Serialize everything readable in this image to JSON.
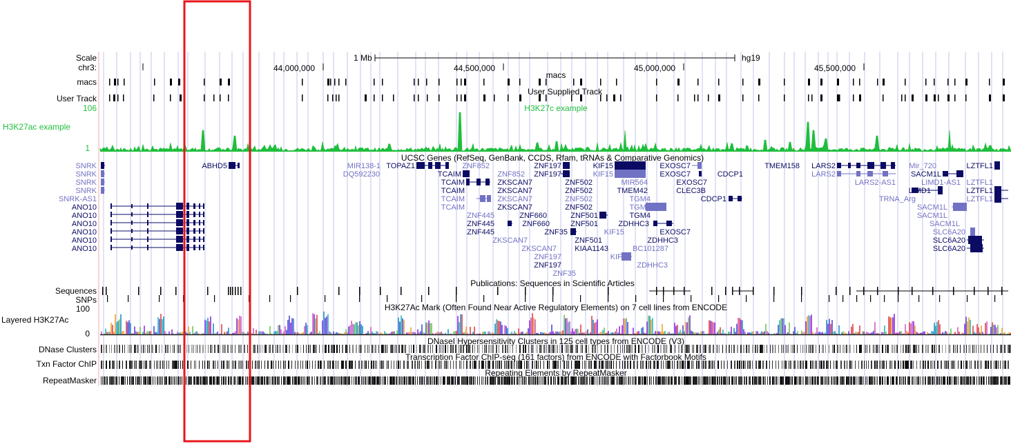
{
  "browser": {
    "scale_label": "Scale",
    "chrom_label": "chr3:",
    "scale_bar_text": "1 Mb",
    "assembly": "hg19",
    "positions": [
      "44,000,000",
      "44,500,000",
      "45,000,000",
      "45,500,000"
    ]
  },
  "tracks": {
    "macs": {
      "label": "macs",
      "center": "macs"
    },
    "user": {
      "label": "User Track",
      "center": "User Supplied Track"
    },
    "h3k27c": {
      "label": "H3K27ac example",
      "center": "H3K27c example",
      "max": "106",
      "min": "1",
      "color": "#1fbe3c"
    },
    "ucsc": {
      "center": "UCSC Genes (RefSeq, GenBank, CCDS, Rfam, tRNAs & Comparative Genomics)"
    },
    "sequences": {
      "label": "Sequences",
      "center": "Publications: Sequences in Scientific Articles"
    },
    "snps": {
      "label": "SNPs"
    },
    "layered": {
      "label": "Layered H3K27Ac",
      "center": "H3K27Ac Mark (Often Found Near Active Regulatory Elements) on 7 cell lines from ENCODE",
      "max": "100",
      "min": "0"
    },
    "dnase": {
      "label": "DNase Clusters",
      "center": "DNaseI Hypersensitivity Clusters in 125 cell types from ENCODE (V3)"
    },
    "txn": {
      "label": "Txn Factor ChIP",
      "center": "Transcription Factor ChIP-seq (161 factors) from ENCODE with Factorbook Motifs"
    },
    "repeat": {
      "label": "RepeatMasker",
      "center": "Repeating Elements by RepeatMasker"
    }
  },
  "left_genes": [
    "SNRK",
    "SNRK",
    "SNRK",
    "SNRK",
    "SNRK-AS1",
    "ANO10",
    "ANO10",
    "ANO10",
    "ANO10",
    "ANO10",
    "ANO10"
  ],
  "genes": {
    "abhd5": "ABHD5",
    "mir138": "MIR138-1",
    "dq592230": "DQ592230",
    "topaz1": "TOPAZ1",
    "tcaim": "TCAIM",
    "znf852": "ZNF852",
    "znf197": "ZNF197",
    "kif15": "KIF15",
    "exosc7": "EXOSC7",
    "cdcp1": "CDCP1",
    "tmem158": "TMEM158",
    "lars2": "LARS2",
    "lars2as1": "LARS2-AS1",
    "mir720": "Mir_720",
    "sacm1l": "SACM1L",
    "lztfl1": "LZTFL1",
    "limd1as1": "LIMD1-AS1",
    "limd1": "LIMD1",
    "trna": "TRNA_Arg",
    "zkscan7": "ZKSCAN7",
    "znf502": "ZNF502",
    "mir564": "MIR564",
    "tmem42": "TMEM42",
    "clec3b": "CLEC3B",
    "tgm4": "TGM4",
    "znf445": "ZNF445",
    "znf660": "ZNF660",
    "znf501": "ZNF501",
    "zdhhc3": "ZDHHC3",
    "znf35": "ZNF35",
    "kiaa1143": "KIAA1143",
    "bc101287": "BC101287",
    "slc6a20": "SLC6A20"
  },
  "colors": {
    "highlight_box": "#e8161b",
    "guide_lines": "#cfcfee",
    "gene_dark": "#0b0b64",
    "gene_light": "#7272c4",
    "signal_green": "#1fbe3c"
  }
}
